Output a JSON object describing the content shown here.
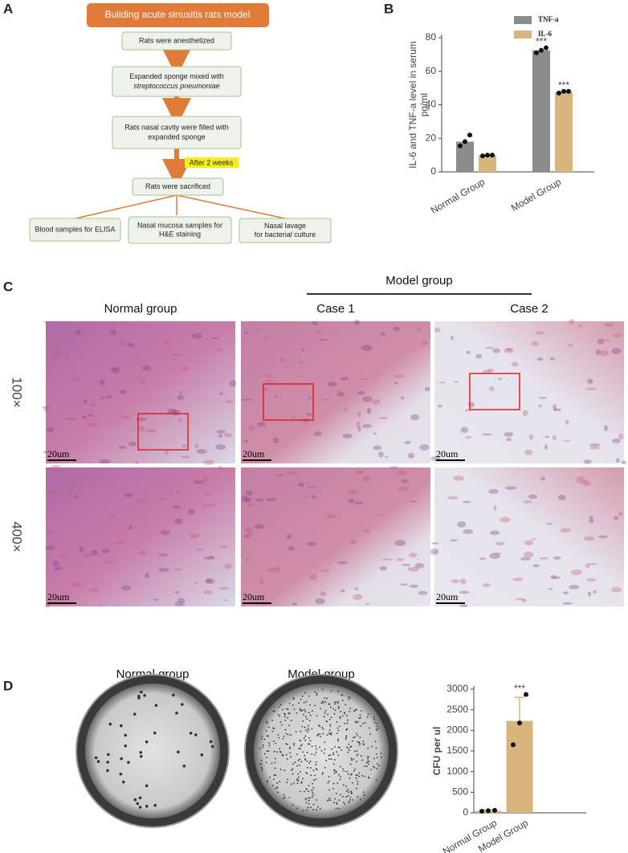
{
  "panel_labels": [
    "A",
    "B",
    "C",
    "D"
  ],
  "flowchart": {
    "title": "Building acute sinusitis rats model",
    "nodes": [
      {
        "lines": [
          "Rats were anesthetized"
        ]
      },
      {
        "lines": [
          "Expanded sponge mixed with",
          "streptococcus pneumoniae"
        ]
      },
      {
        "lines": [
          "Rats nasal cavity were filled with",
          "expanded sponge"
        ]
      },
      {
        "lines": [
          "Rats were sacrificed"
        ]
      }
    ],
    "annotation": "After 2 weeks",
    "outcomes": [
      {
        "lines": [
          "Blood samples  for ELISA"
        ]
      },
      {
        "lines": [
          "Nasal mucosa samples for",
          "H&E staining"
        ]
      },
      {
        "lines": [
          "Nasal lavage",
          "for bacterial culture"
        ]
      }
    ]
  },
  "histology": {
    "header": "Model group",
    "columns": [
      "Normal group",
      "Case 1",
      "Case 2"
    ],
    "rows": [
      "100×",
      "400×"
    ],
    "scale_bar": "20um"
  },
  "colonies": {
    "columns": [
      "Normal group",
      "Model group"
    ]
  },
  "chart_data": [
    {
      "type": "bar",
      "ylabel": [
        "IL-6 and TNF-a level in serum",
        "pg/ml"
      ],
      "categories": [
        "Normal Group",
        "Model Group"
      ],
      "series": [
        {
          "name": "TNF-a",
          "color": "#8c8c8c",
          "values": [
            18,
            72.5
          ],
          "points": [
            [
              15.5,
              18,
              22
            ],
            [
              71,
              72.5,
              74
            ]
          ],
          "significance": [
            null,
            "***"
          ]
        },
        {
          "name": "IL-6",
          "color": "#d7b57c",
          "values": [
            10,
            47.8
          ],
          "points": [
            [
              9.5,
              10,
              10
            ],
            [
              47,
              48,
              48
            ]
          ],
          "significance": [
            null,
            "***"
          ]
        }
      ],
      "ylim": [
        0,
        80
      ],
      "yticks": [
        0,
        20,
        40,
        60,
        80
      ],
      "legend": "top-right"
    },
    {
      "type": "bar",
      "ylabel": "CFU per ul",
      "categories": [
        "Normal Group",
        "Model Group"
      ],
      "values": [
        50,
        2230
      ],
      "error": [
        20,
        570
      ],
      "color": "#d7b57c",
      "points": [
        [
          40,
          50,
          60
        ],
        [
          1650,
          2180,
          2870
        ]
      ],
      "significance": [
        null,
        "***"
      ],
      "ylim": [
        0,
        3000
      ],
      "yticks": [
        0,
        500,
        1000,
        1500,
        2000,
        2500,
        3000
      ]
    }
  ]
}
